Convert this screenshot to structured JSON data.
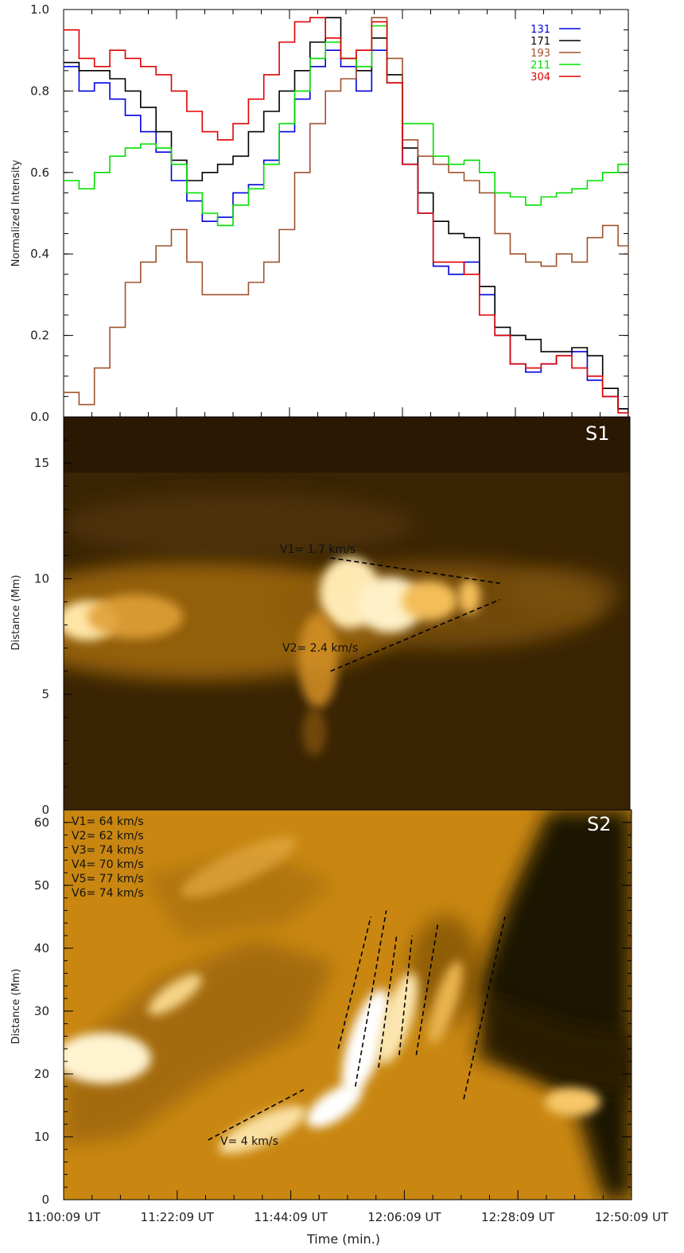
{
  "chart_data": [
    {
      "type": "line",
      "ylabel": "Normalized Intensity",
      "ylim": [
        0.0,
        1.0
      ],
      "yticks": [
        "0.0",
        "0.2",
        "0.4",
        "0.6",
        "0.8",
        "1.0"
      ],
      "xlim_minutes": [
        0,
        110
      ],
      "legend_position": "top-right",
      "series": [
        {
          "name": "131",
          "color": "#0000e0",
          "points": [
            [
              0,
              0.86
            ],
            [
              3,
              0.8
            ],
            [
              6,
              0.82
            ],
            [
              9,
              0.78
            ],
            [
              12,
              0.74
            ],
            [
              15,
              0.7
            ],
            [
              18,
              0.65
            ],
            [
              21,
              0.58
            ],
            [
              24,
              0.53
            ],
            [
              27,
              0.48
            ],
            [
              30,
              0.49
            ],
            [
              33,
              0.55
            ],
            [
              36,
              0.57
            ],
            [
              39,
              0.63
            ],
            [
              42,
              0.7
            ],
            [
              45,
              0.78
            ],
            [
              48,
              0.86
            ],
            [
              51,
              0.9
            ],
            [
              54,
              0.86
            ],
            [
              57,
              0.8
            ],
            [
              60,
              0.9
            ],
            [
              63,
              0.82
            ],
            [
              66,
              0.62
            ],
            [
              69,
              0.5
            ],
            [
              72,
              0.37
            ],
            [
              75,
              0.35
            ],
            [
              78,
              0.38
            ],
            [
              81,
              0.3
            ],
            [
              84,
              0.2
            ],
            [
              87,
              0.13
            ],
            [
              90,
              0.11
            ],
            [
              93,
              0.13
            ],
            [
              96,
              0.15
            ],
            [
              99,
              0.16
            ],
            [
              102,
              0.09
            ],
            [
              105,
              0.05
            ],
            [
              108,
              0.02
            ],
            [
              110,
              0.0
            ]
          ]
        },
        {
          "name": "171",
          "color": "#000000",
          "points": [
            [
              0,
              0.87
            ],
            [
              3,
              0.85
            ],
            [
              6,
              0.85
            ],
            [
              9,
              0.83
            ],
            [
              12,
              0.8
            ],
            [
              15,
              0.76
            ],
            [
              18,
              0.7
            ],
            [
              21,
              0.63
            ],
            [
              24,
              0.58
            ],
            [
              27,
              0.6
            ],
            [
              30,
              0.62
            ],
            [
              33,
              0.64
            ],
            [
              36,
              0.7
            ],
            [
              39,
              0.75
            ],
            [
              42,
              0.8
            ],
            [
              45,
              0.85
            ],
            [
              48,
              0.92
            ],
            [
              51,
              0.98
            ],
            [
              54,
              0.88
            ],
            [
              57,
              0.85
            ],
            [
              60,
              0.93
            ],
            [
              63,
              0.84
            ],
            [
              66,
              0.66
            ],
            [
              69,
              0.55
            ],
            [
              72,
              0.48
            ],
            [
              75,
              0.45
            ],
            [
              78,
              0.44
            ],
            [
              81,
              0.32
            ],
            [
              84,
              0.22
            ],
            [
              87,
              0.2
            ],
            [
              90,
              0.19
            ],
            [
              93,
              0.16
            ],
            [
              96,
              0.16
            ],
            [
              99,
              0.17
            ],
            [
              102,
              0.15
            ],
            [
              105,
              0.07
            ],
            [
              108,
              0.02
            ],
            [
              110,
              0.0
            ]
          ]
        },
        {
          "name": "193",
          "color": "#a0522d",
          "points": [
            [
              0,
              0.06
            ],
            [
              3,
              0.03
            ],
            [
              6,
              0.12
            ],
            [
              9,
              0.22
            ],
            [
              12,
              0.33
            ],
            [
              15,
              0.38
            ],
            [
              18,
              0.42
            ],
            [
              21,
              0.46
            ],
            [
              24,
              0.38
            ],
            [
              27,
              0.3
            ],
            [
              30,
              0.3
            ],
            [
              33,
              0.3
            ],
            [
              36,
              0.33
            ],
            [
              39,
              0.38
            ],
            [
              42,
              0.46
            ],
            [
              45,
              0.6
            ],
            [
              48,
              0.72
            ],
            [
              51,
              0.8
            ],
            [
              54,
              0.83
            ],
            [
              57,
              0.9
            ],
            [
              60,
              0.98
            ],
            [
              63,
              0.88
            ],
            [
              66,
              0.68
            ],
            [
              69,
              0.64
            ],
            [
              72,
              0.62
            ],
            [
              75,
              0.6
            ],
            [
              78,
              0.58
            ],
            [
              81,
              0.55
            ],
            [
              84,
              0.45
            ],
            [
              87,
              0.4
            ],
            [
              90,
              0.38
            ],
            [
              93,
              0.37
            ],
            [
              96,
              0.4
            ],
            [
              99,
              0.38
            ],
            [
              102,
              0.44
            ],
            [
              105,
              0.47
            ],
            [
              108,
              0.42
            ],
            [
              110,
              0.39
            ]
          ]
        },
        {
          "name": "211",
          "color": "#00e000",
          "points": [
            [
              0,
              0.58
            ],
            [
              3,
              0.56
            ],
            [
              6,
              0.6
            ],
            [
              9,
              0.64
            ],
            [
              12,
              0.66
            ],
            [
              15,
              0.67
            ],
            [
              18,
              0.66
            ],
            [
              21,
              0.62
            ],
            [
              24,
              0.55
            ],
            [
              27,
              0.5
            ],
            [
              30,
              0.47
            ],
            [
              33,
              0.52
            ],
            [
              36,
              0.56
            ],
            [
              39,
              0.62
            ],
            [
              42,
              0.72
            ],
            [
              45,
              0.8
            ],
            [
              48,
              0.88
            ],
            [
              51,
              0.92
            ],
            [
              54,
              0.88
            ],
            [
              57,
              0.86
            ],
            [
              60,
              0.96
            ],
            [
              63,
              0.82
            ],
            [
              66,
              0.72
            ],
            [
              69,
              0.72
            ],
            [
              72,
              0.64
            ],
            [
              75,
              0.62
            ],
            [
              78,
              0.63
            ],
            [
              81,
              0.6
            ],
            [
              84,
              0.55
            ],
            [
              87,
              0.54
            ],
            [
              90,
              0.52
            ],
            [
              93,
              0.54
            ],
            [
              96,
              0.55
            ],
            [
              99,
              0.56
            ],
            [
              102,
              0.58
            ],
            [
              105,
              0.6
            ],
            [
              108,
              0.62
            ],
            [
              110,
              0.61
            ]
          ]
        },
        {
          "name": "304",
          "color": "#e00000",
          "points": [
            [
              0,
              0.95
            ],
            [
              3,
              0.88
            ],
            [
              6,
              0.86
            ],
            [
              9,
              0.9
            ],
            [
              12,
              0.88
            ],
            [
              15,
              0.86
            ],
            [
              18,
              0.84
            ],
            [
              21,
              0.8
            ],
            [
              24,
              0.75
            ],
            [
              27,
              0.7
            ],
            [
              30,
              0.68
            ],
            [
              33,
              0.72
            ],
            [
              36,
              0.78
            ],
            [
              39,
              0.84
            ],
            [
              42,
              0.92
            ],
            [
              45,
              0.97
            ],
            [
              48,
              0.98
            ],
            [
              51,
              0.93
            ],
            [
              54,
              0.88
            ],
            [
              57,
              0.9
            ],
            [
              60,
              0.97
            ],
            [
              63,
              0.82
            ],
            [
              66,
              0.62
            ],
            [
              69,
              0.5
            ],
            [
              72,
              0.38
            ],
            [
              75,
              0.38
            ],
            [
              78,
              0.35
            ],
            [
              81,
              0.25
            ],
            [
              84,
              0.2
            ],
            [
              87,
              0.13
            ],
            [
              90,
              0.12
            ],
            [
              93,
              0.13
            ],
            [
              96,
              0.15
            ],
            [
              99,
              0.12
            ],
            [
              102,
              0.1
            ],
            [
              105,
              0.05
            ],
            [
              108,
              0.01
            ],
            [
              110,
              0.0
            ]
          ]
        }
      ]
    },
    {
      "type": "heatmap",
      "panel_label": "S1",
      "ylabel": "Distance (Mm)",
      "ylim": [
        0,
        17
      ],
      "yticks": [
        "0",
        "5",
        "10",
        "15"
      ],
      "annotations": [
        {
          "text": "V1= 1.7 km/s"
        },
        {
          "text": "V2= 2.4 km/s"
        }
      ],
      "fit_lines": [
        {
          "t": [
            52,
            85
          ],
          "d": [
            10.9,
            9.8
          ]
        },
        {
          "t": [
            52,
            85
          ],
          "d": [
            6.0,
            9.1
          ]
        }
      ]
    },
    {
      "type": "heatmap",
      "panel_label": "S2",
      "ylabel": "Distance (Mm)",
      "xlabel": "Time (min.)",
      "ylim": [
        0,
        62
      ],
      "yticks": [
        "0",
        "10",
        "20",
        "30",
        "40",
        "50",
        "60"
      ],
      "xticks": [
        "11:00:09 UT",
        "11:22:09 UT",
        "11:44:09 UT",
        "12:06:09 UT",
        "12:28:09 UT",
        "12:50:09 UT"
      ],
      "velocities": [
        "V1= 64 km/s",
        "V2= 62 km/s",
        "V3= 74 km/s",
        "V4= 70 km/s",
        "V5= 77 km/s",
        "V6= 74 km/s"
      ],
      "slow_annotation": "V= 4 km/s",
      "fit_lines": [
        {
          "t": [
            53.2,
            59.5
          ],
          "d": [
            24,
            45
          ]
        },
        {
          "t": [
            56.5,
            62.5
          ],
          "d": [
            18,
            46
          ]
        },
        {
          "t": [
            61.0,
            64.5
          ],
          "d": [
            21,
            42
          ]
        },
        {
          "t": [
            65.0,
            67.5
          ],
          "d": [
            23,
            42
          ]
        },
        {
          "t": [
            68.3,
            72.5
          ],
          "d": [
            23,
            44
          ]
        },
        {
          "t": [
            77.5,
            85.5
          ],
          "d": [
            16,
            45
          ]
        },
        {
          "t": [
            28.0,
            46.5
          ],
          "d": [
            9.5,
            17.5
          ]
        }
      ]
    }
  ]
}
